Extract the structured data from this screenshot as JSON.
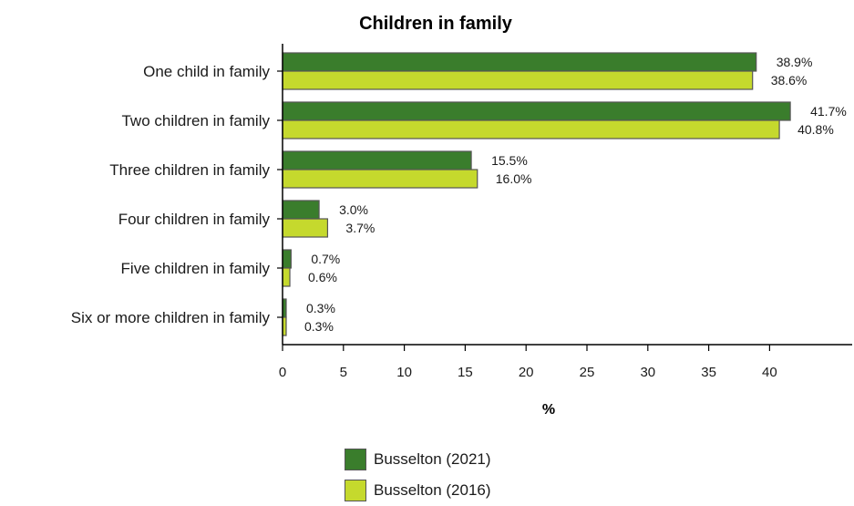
{
  "chart_data": {
    "type": "bar",
    "orientation": "horizontal",
    "title": "Children in family",
    "xlabel": "%",
    "ylabel": "",
    "xlim": [
      0,
      47
    ],
    "xticks": [
      0,
      5,
      10,
      15,
      20,
      25,
      30,
      35,
      40
    ],
    "grid": false,
    "legend_position": "bottom",
    "categories": [
      "One child in family",
      "Two children in family",
      "Three children in family",
      "Four children in family",
      "Five children in family",
      "Six or more children in family"
    ],
    "series": [
      {
        "name": "Busselton (2021)",
        "color": "#3a7d2c",
        "values": [
          38.9,
          41.7,
          15.5,
          3.0,
          0.7,
          0.3
        ],
        "labels": [
          "38.9%",
          "41.7%",
          "15.5%",
          "3.0%",
          "0.7%",
          "0.3%"
        ]
      },
      {
        "name": "Busselton (2016)",
        "color": "#c5d92d",
        "values": [
          38.6,
          40.8,
          16.0,
          3.7,
          0.6,
          0.3
        ],
        "labels": [
          "38.6%",
          "40.8%",
          "16.0%",
          "3.7%",
          "0.6%",
          "0.3%"
        ]
      }
    ]
  }
}
